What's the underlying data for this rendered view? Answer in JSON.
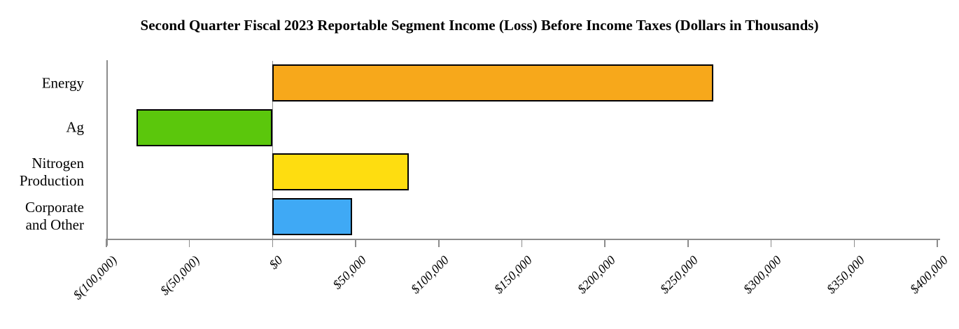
{
  "chart_data": {
    "type": "bar",
    "orientation": "horizontal",
    "title": "Second Quarter Fiscal 2023 Reportable Segment Income (Loss) Before Income Taxes (Dollars in Thousands)",
    "categories": [
      "Energy",
      "Ag",
      "Nitrogen\nProduction",
      "Corporate\nand Other"
    ],
    "values": [
      265000,
      -82000,
      82000,
      48000
    ],
    "bar_colors": [
      "#F7A81B",
      "#5BC70C",
      "#FEDD10",
      "#3FA9F5"
    ],
    "xlim": [
      -100000,
      400000
    ],
    "xtick_step": 50000,
    "xticks": [
      {
        "value": -100000,
        "label": "$(100,000)"
      },
      {
        "value": -50000,
        "label": "$(50,000)"
      },
      {
        "value": 0,
        "label": "$0"
      },
      {
        "value": 50000,
        "label": "$50,000"
      },
      {
        "value": 100000,
        "label": "$100,000"
      },
      {
        "value": 150000,
        "label": "$150,000"
      },
      {
        "value": 200000,
        "label": "$200,000"
      },
      {
        "value": 250000,
        "label": "$250,000"
      },
      {
        "value": 300000,
        "label": "$300,000"
      },
      {
        "value": 350000,
        "label": "$350,000"
      },
      {
        "value": 400000,
        "label": "$400,000"
      }
    ],
    "legend": "none",
    "gridlines": "zero-baseline-only"
  },
  "colors": {
    "background": "#FFFFFF",
    "axis": "#8C8C8C",
    "bar_border": "#000000",
    "text": "#000000"
  }
}
